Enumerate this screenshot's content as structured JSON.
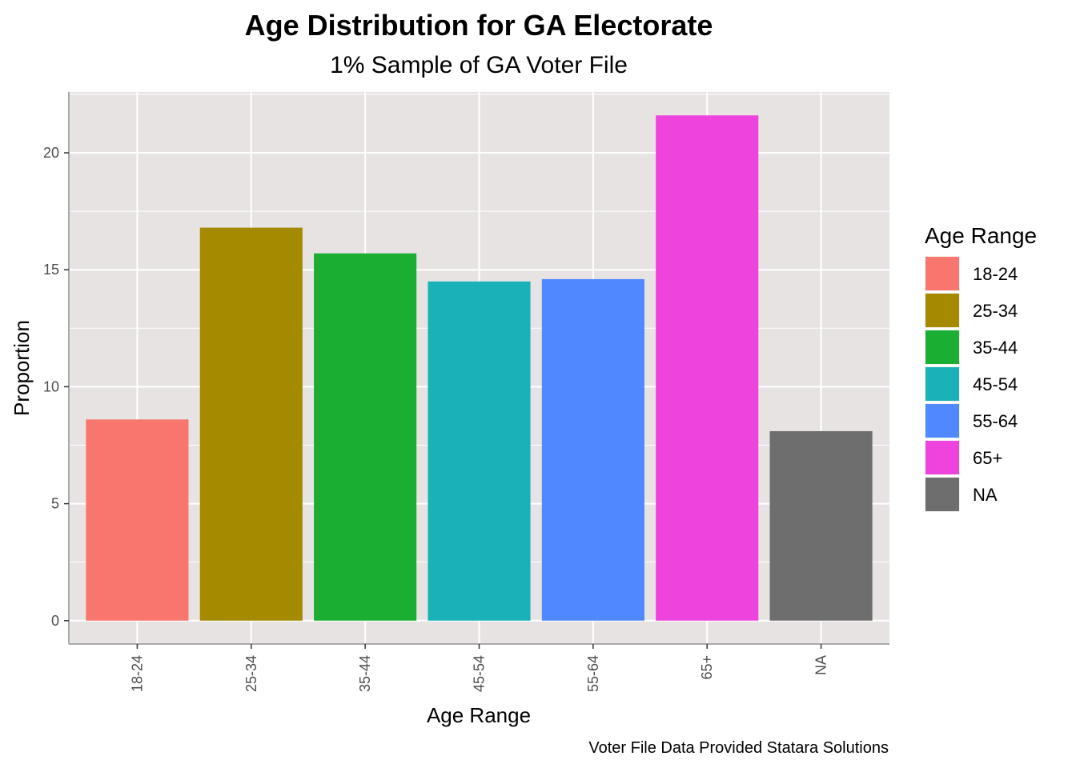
{
  "chart_data": {
    "type": "bar",
    "title": "Age Distribution for GA Electorate",
    "subtitle": "1% Sample of GA Voter File",
    "xlabel": "Age Range",
    "ylabel": "Proportion",
    "caption": "Voter File Data Provided Statara Solutions",
    "categories": [
      "18-24",
      "25-34",
      "35-44",
      "45-54",
      "55-64",
      "65+",
      "NA"
    ],
    "values": [
      8.6,
      16.8,
      15.7,
      14.5,
      14.6,
      21.6,
      8.1
    ],
    "colors": [
      "#F8766D",
      "#A58A00",
      "#1AAF32",
      "#19B2B8",
      "#4F88FF",
      "#EE43DC",
      "#6E6E6E"
    ],
    "ylim": [
      -1,
      22.6
    ],
    "yticks": [
      0,
      5,
      10,
      15,
      20
    ],
    "grid": true,
    "legend": {
      "title": "Age Range",
      "placement": "right",
      "entries": [
        "18-24",
        "25-34",
        "35-44",
        "45-54",
        "55-64",
        "65+",
        "NA"
      ]
    }
  }
}
